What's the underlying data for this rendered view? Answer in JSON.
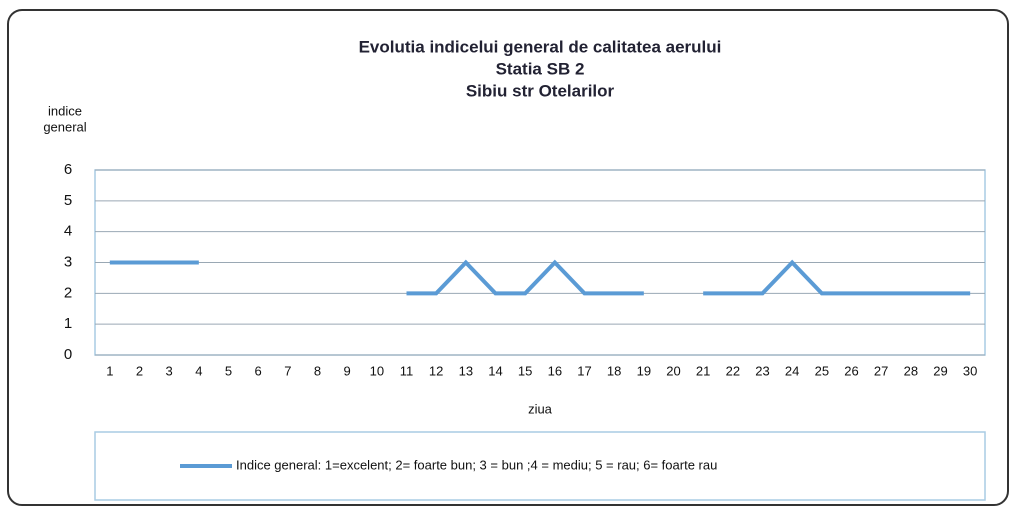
{
  "chart_data": {
    "type": "line",
    "title": [
      "Evolutia indicelui  general de calitatea aerului",
      "Statia SB 2",
      "Sibiu str Otelarilor"
    ],
    "y_label": [
      "indice",
      "general"
    ],
    "x_label": "ziua",
    "categories": [
      1,
      2,
      3,
      4,
      5,
      6,
      7,
      8,
      9,
      10,
      11,
      12,
      13,
      14,
      15,
      16,
      17,
      18,
      19,
      20,
      21,
      22,
      23,
      24,
      25,
      26,
      27,
      28,
      29,
      30
    ],
    "series": [
      {
        "name": "Indice general: 1=excelent; 2= foarte bun; 3 = bun ;4 = mediu; 5 = rau; 6= foarte rau",
        "color": "#5b9bd5",
        "values": [
          3,
          3,
          3,
          3,
          null,
          null,
          null,
          null,
          null,
          null,
          2,
          2,
          3,
          2,
          2,
          3,
          2,
          2,
          2,
          null,
          2,
          2,
          2,
          3,
          2,
          2,
          2,
          2,
          2,
          2
        ]
      }
    ],
    "ylim": [
      0,
      6
    ],
    "yticks": [
      0,
      1,
      2,
      3,
      4,
      5,
      6
    ],
    "grid": true,
    "legend": "bottom"
  }
}
